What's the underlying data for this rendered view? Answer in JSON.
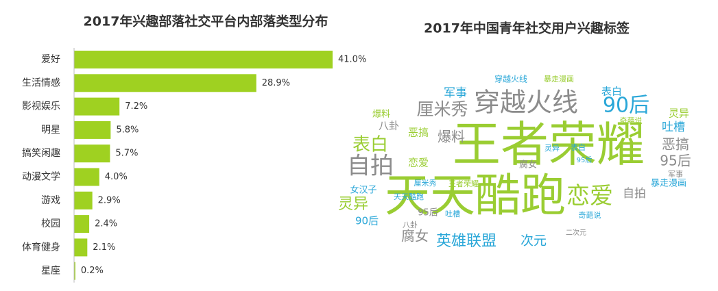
{
  "chart_data": [
    {
      "type": "bar",
      "title": "2017年兴趣部落社交平台内部落类型分布",
      "categories": [
        "爱好",
        "生活情感",
        "影视娱乐",
        "明星",
        "搞笑闲趣",
        "动漫文学",
        "游戏",
        "校园",
        "体育健身",
        "星座"
      ],
      "values": [
        41.0,
        28.9,
        7.2,
        5.8,
        5.7,
        4.0,
        2.9,
        2.4,
        2.1,
        0.2
      ],
      "value_labels": [
        "41.0%",
        "28.9%",
        "7.2%",
        "5.8%",
        "5.7%",
        "4.0%",
        "2.9%",
        "2.4%",
        "2.1%",
        "0.2%"
      ],
      "color": "#9fd121"
    },
    {
      "type": "wordcloud",
      "title": "2017年中国青年社交用户兴趣标签",
      "words": [
        {
          "text": "王者荣耀",
          "color": "#9acd32"
        },
        {
          "text": "天天酷跑",
          "color": "#9acd32"
        },
        {
          "text": "穿越火线",
          "color": "#8c8c8c"
        },
        {
          "text": "自拍",
          "color": "#8c8c8c"
        },
        {
          "text": "恋爱",
          "color": "#9acd32"
        },
        {
          "text": "90后",
          "color": "#2aa7d8"
        },
        {
          "text": "厘米秀",
          "color": "#8c8c8c"
        },
        {
          "text": "表白",
          "color": "#9acd32"
        },
        {
          "text": "英雄联盟",
          "color": "#2aa7d8"
        },
        {
          "text": "灵异",
          "color": "#9acd32"
        },
        {
          "text": "爆料",
          "color": "#8c8c8c"
        },
        {
          "text": "恶搞",
          "color": "#8c8c8c"
        },
        {
          "text": "95后",
          "color": "#8c8c8c"
        },
        {
          "text": "吐槽",
          "color": "#2aa7d8"
        },
        {
          "text": "自拍",
          "color": "#8c8c8c"
        },
        {
          "text": "腐女",
          "color": "#8c8c8c"
        },
        {
          "text": "次元",
          "color": "#2aa7d8"
        },
        {
          "text": "军事",
          "color": "#2aa7d8"
        },
        {
          "text": "表白",
          "color": "#2aa7d8"
        },
        {
          "text": "灵异",
          "color": "#9acd32"
        },
        {
          "text": "暴走漫画",
          "color": "#2aa7d8"
        },
        {
          "text": "女汉子",
          "color": "#2aa7d8"
        },
        {
          "text": "90后",
          "color": "#2aa7d8"
        },
        {
          "text": "八卦",
          "color": "#8c8c8c"
        },
        {
          "text": "恶搞",
          "color": "#9acd32"
        },
        {
          "text": "恋爱",
          "color": "#9acd32"
        },
        {
          "text": "厘米秀",
          "color": "#2aa7d8"
        },
        {
          "text": "王者荣耀",
          "color": "#9acd32"
        },
        {
          "text": "天天酷跑",
          "color": "#2aa7d8"
        },
        {
          "text": "95后",
          "color": "#8c8c8c"
        },
        {
          "text": "吐槽",
          "color": "#2aa7d8"
        },
        {
          "text": "奇葩说",
          "color": "#2aa7d8"
        },
        {
          "text": "穿越火线",
          "color": "#2aa7d8"
        },
        {
          "text": "暴走漫画",
          "color": "#9acd32"
        },
        {
          "text": "爆料",
          "color": "#9acd32"
        },
        {
          "text": "奇葩说",
          "color": "#9acd32"
        },
        {
          "text": "军事",
          "color": "#8c8c8c"
        },
        {
          "text": "腐女",
          "color": "#8c8c8c"
        },
        {
          "text": "95后",
          "color": "#2aa7d8"
        },
        {
          "text": "表白",
          "color": "#2aa7d8"
        },
        {
          "text": "灵异",
          "color": "#2aa7d8"
        },
        {
          "text": "二次元",
          "color": "#8c8c8c"
        },
        {
          "text": "八卦",
          "color": "#8c8c8c"
        }
      ]
    }
  ]
}
